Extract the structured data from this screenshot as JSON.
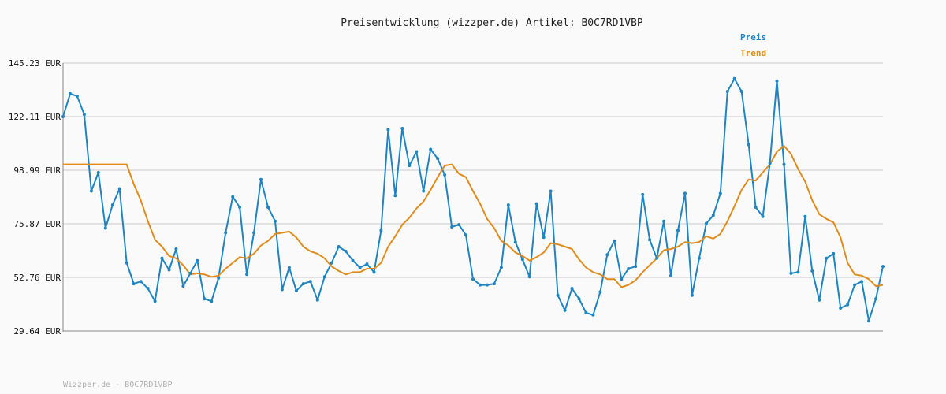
{
  "chart_data": {
    "type": "line",
    "title": "Preisentwicklung (wizzper.de) Artikel: B0C7RD1VBP",
    "xlabel": "",
    "ylabel": "",
    "ylim": [
      29.64,
      145.23
    ],
    "y_ticks": [
      "145.23 EUR",
      "122.11 EUR",
      "98.99 EUR",
      "75.87 EUR",
      "52.76 EUR",
      "29.64 EUR"
    ],
    "grid": true,
    "legend_position": "top-right",
    "series": [
      {
        "name": "Preis",
        "color": "#1f85c2",
        "values": [
          122.1,
          132.0,
          131.0,
          123.0,
          90.0,
          98.0,
          74.0,
          84.0,
          91.0,
          59.0,
          50.0,
          51.0,
          48.0,
          42.5,
          61.0,
          56.0,
          65.0,
          49.0,
          54.5,
          60.0,
          43.5,
          42.5,
          52.5,
          72.0,
          87.5,
          83.0,
          54.0,
          72.0,
          95.0,
          83.0,
          77.0,
          47.5,
          57.0,
          47.0,
          50.0,
          51.0,
          43.0,
          53.0,
          59.0,
          66.0,
          64.0,
          60.0,
          57.0,
          58.5,
          55.0,
          73.0,
          116.5,
          88.0,
          117.0,
          101.0,
          107.0,
          90.0,
          108.0,
          104.0,
          97.0,
          74.5,
          75.5,
          71.0,
          52.0,
          49.5,
          49.5,
          50.0,
          57.0,
          84.0,
          68.0,
          60.5,
          53.0,
          84.5,
          70.0,
          90.0,
          45.0,
          38.5,
          48.0,
          43.5,
          37.5,
          36.5,
          46.5,
          62.5,
          68.5,
          52.0,
          56.5,
          57.5,
          88.5,
          69.0,
          61.0,
          77.0,
          53.5,
          73.0,
          89.0,
          45.0,
          61.0,
          76.0,
          79.5,
          89.0,
          133.0,
          138.5,
          133.0,
          110.0,
          83.0,
          79.0,
          102.0,
          137.5,
          101.5,
          54.5,
          55.0,
          79.0,
          55.5,
          43.0,
          61.0,
          63.0,
          39.5,
          41.0,
          49.5,
          51.0,
          34.0,
          43.5,
          57.5
        ]
      },
      {
        "name": "Trend",
        "color": "#e08c1c",
        "values": [
          101.5,
          101.5,
          101.5,
          101.5,
          101.5,
          101.5,
          101.5,
          101.5,
          101.5,
          101.5,
          93.0,
          86.0,
          77.0,
          69.0,
          66.0,
          62.0,
          61.0,
          58.0,
          54.0,
          54.5,
          54.0,
          53.0,
          53.5,
          56.5,
          59.0,
          61.5,
          61.0,
          63.0,
          66.5,
          68.5,
          71.5,
          72.0,
          72.5,
          70.0,
          66.0,
          64.0,
          63.0,
          61.0,
          57.5,
          55.5,
          54.0,
          55.0,
          55.0,
          56.5,
          56.5,
          59.0,
          66.0,
          70.5,
          75.5,
          78.5,
          82.5,
          85.5,
          90.5,
          96.0,
          101.0,
          101.5,
          97.5,
          96.0,
          90.0,
          84.5,
          78.0,
          74.0,
          68.5,
          66.5,
          63.5,
          62.0,
          60.0,
          61.5,
          63.5,
          67.5,
          67.0,
          66.0,
          65.0,
          60.5,
          57.0,
          55.0,
          54.0,
          52.0,
          52.0,
          48.5,
          49.5,
          51.5,
          55.0,
          58.0,
          61.0,
          64.5,
          65.0,
          66.0,
          68.0,
          67.5,
          68.0,
          70.5,
          69.5,
          71.5,
          77.0,
          83.5,
          90.5,
          95.0,
          94.5,
          98.0,
          101.5,
          107.0,
          109.5,
          106.0,
          99.5,
          94.0,
          86.0,
          80.0,
          78.0,
          76.5,
          70.0,
          59.0,
          54.0,
          53.5,
          52.0,
          49.0,
          49.5
        ]
      }
    ]
  },
  "footer": "Wizzper.de - B0C7RD1VBP"
}
